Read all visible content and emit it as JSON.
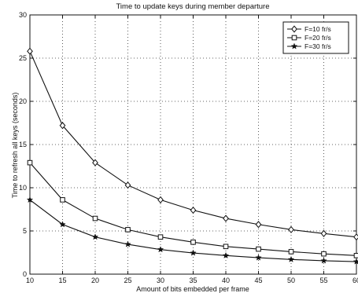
{
  "chart_data": {
    "type": "line",
    "title": "Time to update keys during member departure",
    "xlabel": "Amount of bits embedded per frame",
    "ylabel": "Time to refresh all keys (seconds)",
    "xlim": [
      10,
      60
    ],
    "ylim": [
      0,
      30
    ],
    "xticks": [
      10,
      15,
      20,
      25,
      30,
      35,
      40,
      45,
      50,
      55,
      60
    ],
    "yticks": [
      0,
      5,
      10,
      15,
      20,
      25,
      30
    ],
    "xtick_labels": [
      "10",
      "15",
      "20",
      "25",
      "30",
      "35",
      "40",
      "45",
      "50",
      "55",
      "60"
    ],
    "ytick_labels": [
      "0",
      "5",
      "10",
      "15",
      "20",
      "25",
      "30"
    ],
    "grid": true,
    "legend_position": "top-right",
    "x": [
      10,
      15,
      20,
      25,
      30,
      35,
      40,
      45,
      50,
      55,
      60
    ],
    "series": [
      {
        "name": "F=10 fr/s",
        "marker": "diamond",
        "values": [
          25.8,
          17.2,
          12.9,
          10.3,
          8.6,
          7.4,
          6.45,
          5.75,
          5.15,
          4.7,
          4.3
        ]
      },
      {
        "name": "F=20 fr/s",
        "marker": "square",
        "values": [
          12.9,
          8.6,
          6.45,
          5.15,
          4.3,
          3.7,
          3.2,
          2.9,
          2.6,
          2.35,
          2.15
        ]
      },
      {
        "name": "F=30 fr/s",
        "marker": "star",
        "values": [
          8.6,
          5.75,
          4.3,
          3.45,
          2.85,
          2.45,
          2.15,
          1.9,
          1.7,
          1.55,
          1.45
        ]
      }
    ]
  }
}
